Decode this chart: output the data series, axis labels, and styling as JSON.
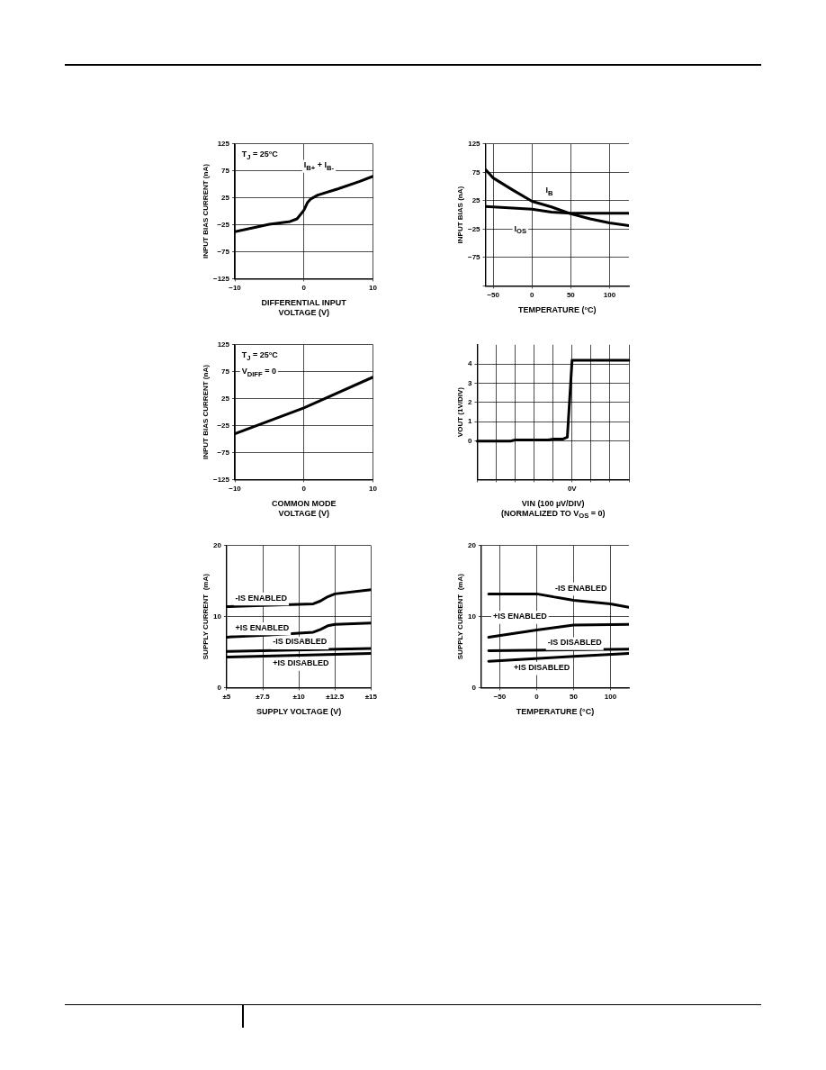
{
  "chart_data": [
    {
      "type": "line",
      "xlabel": "DIFFERENTIAL INPUT\nVOLTAGE (V)",
      "ylabel": "INPUT BIAS CURRENT (nA)",
      "xlim": [
        -10,
        10
      ],
      "xticks": [
        -10,
        0,
        10
      ],
      "ylim": [
        -125,
        125
      ],
      "yticks": [
        -125,
        -75,
        -25,
        25,
        75,
        125
      ],
      "grid": true,
      "marker": "none",
      "line_style": "solid",
      "annotations": [
        "T$_{J}$ = 25°C"
      ],
      "series": [
        {
          "name": "I$_{B+}$ + I$_{B-}$",
          "color": "#000000",
          "x": [
            -10,
            -5,
            -2,
            -1,
            0,
            0.5,
            1,
            2,
            5,
            8,
            10
          ],
          "values": [
            -38,
            -24,
            -19,
            -14,
            2,
            16,
            23,
            30,
            42,
            55,
            65
          ]
        }
      ]
    },
    {
      "type": "line",
      "xlabel": "TEMPERATURE (°C)",
      "ylabel": "INPUT BIAS (nA)",
      "xlim": [
        -60,
        125
      ],
      "xticks": [
        -50,
        0,
        50,
        100
      ],
      "ylim": [
        -125,
        125
      ],
      "yticks": [
        {
          "value": -125,
          "label": null
        },
        -75,
        -25,
        25,
        75,
        125
      ],
      "grid": true,
      "marker": "none",
      "line_style": "solid",
      "series": [
        {
          "name": "I$_{B}$",
          "color": "#000000",
          "x": [
            -60,
            -50,
            -25,
            0,
            25,
            50,
            75,
            100,
            125
          ],
          "values": [
            80,
            65,
            44,
            24,
            14,
            2,
            -7,
            -14,
            -19
          ]
        },
        {
          "name": "I$_{OS}$",
          "color": "#000000",
          "x": [
            -60,
            -25,
            0,
            25,
            50,
            125
          ],
          "values": [
            15,
            12,
            10,
            5,
            3,
            3
          ]
        }
      ]
    },
    {
      "type": "line",
      "xlabel": "COMMON MODE\nVOLTAGE (V)",
      "ylabel": "INPUT BIAS CURRENT (nA)",
      "xlim": [
        -10,
        10
      ],
      "xticks": [
        -10,
        0,
        10
      ],
      "ylim": [
        -125,
        125
      ],
      "yticks": [
        -125,
        -75,
        -25,
        25,
        75,
        125
      ],
      "grid": true,
      "marker": "none",
      "line_style": "solid",
      "annotations": [
        "T$_{J}$ = 25°C",
        "V$_{DIFF}$ = 0"
      ],
      "series": [
        {
          "color": "#000000",
          "x": [
            -10,
            0,
            10
          ],
          "values": [
            -40,
            8,
            65
          ]
        }
      ]
    },
    {
      "type": "line",
      "xlabel": "VIN (100 µV/DIV)\n(NORMALIZED TO V$_{OS}$ = 0)",
      "ylabel": "VOUT (1V/DIV)",
      "categories": [
        null,
        null,
        null,
        null,
        null,
        null,
        null,
        null,
        null,
        null,
        null,
        null,
        null,
        null,
        null,
        null,
        null,
        null,
        null,
        null,
        "0V",
        null,
        null,
        null,
        null,
        null,
        null,
        null,
        null,
        null,
        null,
        null,
        null
      ],
      "ylim": [
        -2,
        5
      ],
      "yticks": [
        0,
        1,
        2,
        3,
        4
      ],
      "grid": true,
      "marker": "none",
      "line_style": "solid",
      "series": [
        {
          "color": "#000000",
          "values": [
            0,
            0,
            0,
            0,
            0,
            0,
            0,
            0,
            0.05,
            0.05,
            0.05,
            0.05,
            0.05,
            0.05,
            0.05,
            0.05,
            0.1,
            0.1,
            0.1,
            0.2,
            4.2,
            4.2,
            4.2,
            4.2,
            4.2,
            4.2,
            4.2,
            4.2,
            4.2,
            4.2,
            4.2,
            4.2,
            4.2
          ]
        }
      ]
    },
    {
      "type": "line",
      "xlabel": "SUPPLY VOLTAGE (V)",
      "ylabel": "SUPPLY CURRENT  (mA)",
      "xlim": [
        5,
        15
      ],
      "xticks": [
        {
          "value": 5,
          "label": "±5"
        },
        {
          "value": 7.5,
          "label": "±7.5"
        },
        {
          "value": 10,
          "label": "±10"
        },
        {
          "value": 12.5,
          "label": "±12.5"
        },
        {
          "value": 15,
          "label": "±15"
        }
      ],
      "ylim": [
        0,
        20
      ],
      "yticks": [
        0,
        10,
        20
      ],
      "grid": true,
      "marker": "none",
      "line_style": "solid",
      "series": [
        {
          "name": "-IS ENABLED",
          "color": "#000000",
          "x": [
            5,
            8,
            11,
            11.5,
            12,
            12.5,
            15
          ],
          "values": [
            11.4,
            11.6,
            11.8,
            12.2,
            12.8,
            13.2,
            13.8
          ]
        },
        {
          "name": "+IS ENABLED",
          "color": "#000000",
          "x": [
            5,
            8,
            11,
            11.5,
            12,
            12.5,
            15
          ],
          "values": [
            7.1,
            7.4,
            7.8,
            8.2,
            8.7,
            8.9,
            9.1
          ]
        },
        {
          "name": "-IS DISABLED",
          "color": "#000000",
          "x": [
            5,
            15
          ],
          "values": [
            5.1,
            5.5
          ]
        },
        {
          "name": "+IS DISABLED",
          "color": "#000000",
          "x": [
            5,
            15
          ],
          "values": [
            4.3,
            4.8
          ]
        }
      ]
    },
    {
      "type": "line",
      "xlabel": "TEMPERATURE (°C)",
      "ylabel": "SUPPLY CURRENT  (mA)",
      "xlim": [
        -75,
        125
      ],
      "xticks": [
        -50,
        0,
        50,
        100
      ],
      "ylim": [
        0,
        20
      ],
      "yticks": [
        0,
        10,
        20
      ],
      "grid": true,
      "marker": "none",
      "line_style": "solid",
      "series": [
        {
          "name": "-IS ENABLED",
          "color": "#000000",
          "x": [
            -65,
            0,
            50,
            100,
            125
          ],
          "values": [
            13.2,
            13.2,
            12.3,
            11.8,
            11.3
          ]
        },
        {
          "name": "+IS ENABLED",
          "color": "#000000",
          "x": [
            -65,
            0,
            50,
            125
          ],
          "values": [
            7.1,
            8.1,
            8.8,
            8.9
          ]
        },
        {
          "name": "-IS DISABLED",
          "color": "#000000",
          "x": [
            -65,
            125
          ],
          "values": [
            5.2,
            5.4
          ]
        },
        {
          "name": "+IS DISABLED",
          "color": "#000000",
          "x": [
            -65,
            50,
            125
          ],
          "values": [
            3.7,
            4.4,
            4.8
          ]
        }
      ]
    }
  ]
}
